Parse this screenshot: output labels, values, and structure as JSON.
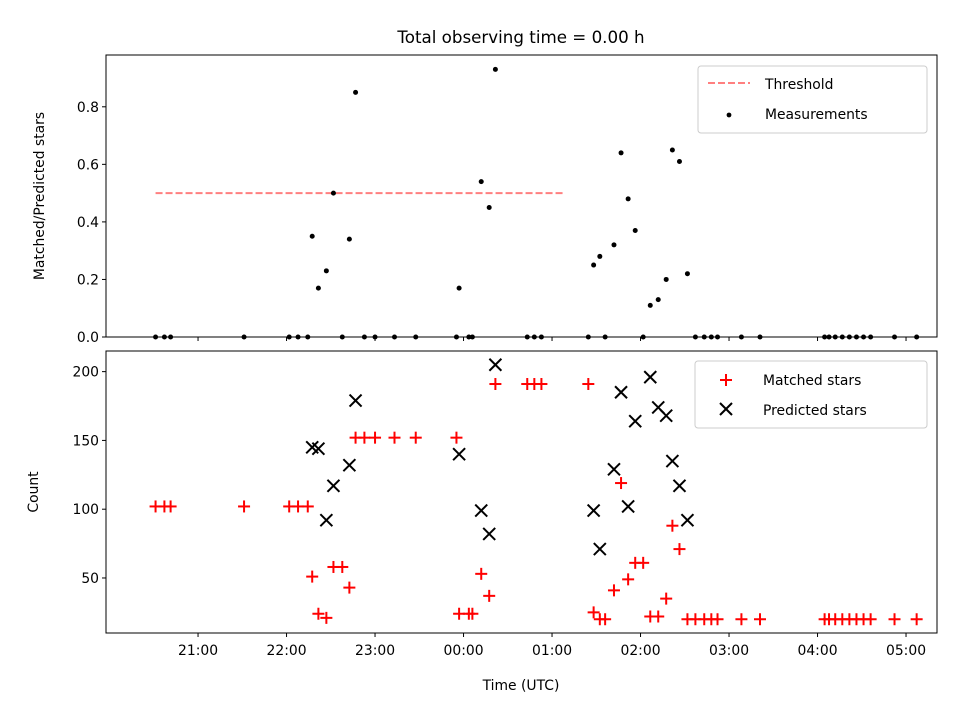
{
  "chart_data": [
    {
      "type": "scatter",
      "title": "Total observing time = 0.00 h",
      "xlabel": "",
      "ylabel": "Matched/Predicted stars",
      "ylim": [
        0,
        0.98
      ],
      "yticks": [
        "0.0",
        "0.2",
        "0.4",
        "0.6",
        "0.8"
      ],
      "legend_position": "upper right",
      "grid": false,
      "series": [
        {
          "name": "Threshold",
          "style": "dashed-line",
          "color": "#ff7f7f",
          "x": [
            20.52,
            25.13
          ],
          "y": [
            0.5,
            0.5
          ]
        },
        {
          "name": "Measurements",
          "style": "dot",
          "color": "#000000",
          "x": [
            20.52,
            20.62,
            20.69,
            21.52,
            22.03,
            22.13,
            22.24,
            22.29,
            22.36,
            22.45,
            22.53,
            22.63,
            22.71,
            22.78,
            22.88,
            23.0,
            23.22,
            23.46,
            23.92,
            23.95,
            24.06,
            24.1,
            24.2,
            24.29,
            24.36,
            24.72,
            24.8,
            24.88,
            25.41,
            25.47,
            25.54,
            25.6,
            25.7,
            25.78,
            25.86,
            25.94,
            26.03,
            26.11,
            26.2,
            26.29,
            26.36,
            26.44,
            26.53,
            26.62,
            26.72,
            26.8,
            26.87,
            27.14,
            27.35,
            28.08,
            28.13,
            28.2,
            28.28,
            28.36,
            28.44,
            28.52,
            28.6,
            28.87,
            29.12
          ],
          "y": [
            0,
            0,
            0,
            0,
            0,
            0,
            0,
            0.35,
            0.17,
            0.23,
            0.5,
            0,
            0.34,
            0.85,
            0,
            0,
            0,
            0,
            0,
            0.17,
            0,
            0,
            0.54,
            0.45,
            0.93,
            0,
            0,
            0,
            0,
            0.25,
            0.28,
            0,
            0.32,
            0.64,
            0.48,
            0.37,
            0,
            0.11,
            0.13,
            0.2,
            0.65,
            0.61,
            0.22,
            0,
            0,
            0,
            0,
            0,
            0,
            0,
            0,
            0,
            0,
            0,
            0,
            0,
            0,
            0,
            0
          ]
        }
      ]
    },
    {
      "type": "scatter",
      "title": "",
      "xlabel": "Time (UTC)",
      "ylabel": "Count",
      "ylim": [
        10,
        215
      ],
      "yticks": [
        "50",
        "100",
        "150",
        "200"
      ],
      "xlim": [
        19.96,
        29.35
      ],
      "xticks": [
        "21:00",
        "22:00",
        "23:00",
        "00:00",
        "01:00",
        "02:00",
        "03:00",
        "04:00",
        "05:00"
      ],
      "legend_position": "upper right",
      "grid": false,
      "series": [
        {
          "name": "Matched stars",
          "style": "plus",
          "color": "#ff0000",
          "x": [
            20.52,
            20.62,
            20.69,
            21.52,
            22.03,
            22.13,
            22.24,
            22.29,
            22.36,
            22.45,
            22.53,
            22.63,
            22.71,
            22.78,
            22.88,
            23.0,
            23.22,
            23.46,
            23.92,
            23.95,
            24.06,
            24.1,
            24.2,
            24.29,
            24.36,
            24.72,
            24.8,
            24.88,
            25.41,
            25.47,
            25.54,
            25.6,
            25.7,
            25.78,
            25.86,
            25.94,
            26.03,
            26.11,
            26.2,
            26.29,
            26.36,
            26.44,
            26.53,
            26.62,
            26.72,
            26.8,
            26.87,
            27.14,
            27.35,
            28.08,
            28.13,
            28.2,
            28.28,
            28.36,
            28.44,
            28.52,
            28.6,
            28.87,
            29.12
          ],
          "y": [
            102,
            102,
            102,
            102,
            102,
            102,
            102,
            51,
            24,
            21,
            58,
            58,
            43,
            152,
            152,
            152,
            152,
            152,
            152,
            24,
            24,
            24,
            53,
            37,
            191,
            191,
            191,
            191,
            191,
            25,
            20,
            20,
            41,
            119,
            49,
            61,
            61,
            22,
            22,
            35,
            88,
            71,
            20,
            20,
            20,
            20,
            20,
            20,
            20,
            20,
            20,
            20,
            20,
            20,
            20,
            20,
            20,
            20,
            20
          ]
        },
        {
          "name": "Predicted stars",
          "style": "x",
          "color": "#000000",
          "x": [
            22.29,
            22.36,
            22.45,
            22.53,
            22.71,
            22.78,
            23.95,
            24.2,
            24.29,
            24.36,
            25.47,
            25.54,
            25.7,
            25.78,
            25.86,
            25.94,
            26.11,
            26.2,
            26.29,
            26.36,
            26.44,
            26.53
          ],
          "y": [
            145,
            144,
            92,
            117,
            132,
            179,
            140,
            99,
            82,
            205,
            99,
            71,
            129,
            185,
            102,
            164,
            196,
            174,
            168,
            135,
            117,
            92
          ]
        }
      ]
    }
  ]
}
